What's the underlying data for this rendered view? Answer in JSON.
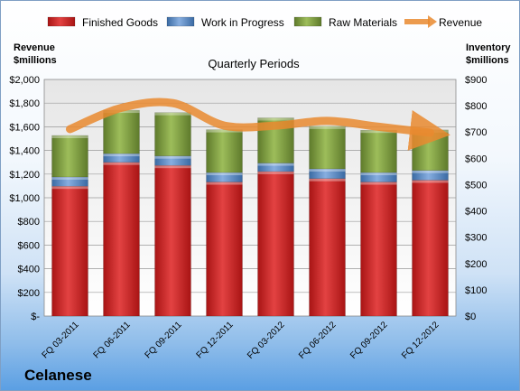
{
  "chart_data": {
    "type": "bar",
    "stacked": true,
    "subtitle": "Quarterly Periods",
    "company": "Celanese",
    "categories": [
      "FQ 03-2011",
      "FQ 06-2011",
      "FQ 09-2011",
      "FQ 12-2011",
      "FQ 03-2012",
      "FQ 06-2012",
      "FQ 09-2012",
      "FQ 12-2012"
    ],
    "left_axis": {
      "label_line1": "Revenue",
      "label_line2": "$millions",
      "range": [
        0,
        2000
      ],
      "ticks": [
        "$-",
        "$200",
        "$400",
        "$600",
        "$800",
        "$1,000",
        "$1,200",
        "$1,400",
        "$1,600",
        "$1,800",
        "$2,000"
      ]
    },
    "right_axis": {
      "label_line1": "Inventory",
      "label_line2": "$millions",
      "range": [
        0,
        900
      ],
      "ticks": [
        "$0",
        "$100",
        "$200",
        "$300",
        "$400",
        "$500",
        "$600",
        "$700",
        "$800",
        "$900"
      ]
    },
    "series": [
      {
        "name": "Finished Goods",
        "axis": "right",
        "color": "#cc1f1f",
        "values": [
          494,
          585,
          573,
          510,
          550,
          523,
          510,
          517
        ]
      },
      {
        "name": "Work in Progress",
        "axis": "right",
        "color": "#4f81bd",
        "values": [
          35,
          33,
          36,
          36,
          32,
          37,
          36,
          37
        ]
      },
      {
        "name": "Raw Materials",
        "axis": "right",
        "color": "#77933c",
        "values": [
          158,
          165,
          165,
          163,
          172,
          162,
          161,
          154
        ]
      },
      {
        "name": "Revenue",
        "axis": "left",
        "color": "#e98a2f",
        "type": "line",
        "values": [
          1580,
          1760,
          1800,
          1610,
          1610,
          1650,
          1600,
          1550
        ]
      }
    ],
    "grid": true,
    "legend_position": "top"
  }
}
